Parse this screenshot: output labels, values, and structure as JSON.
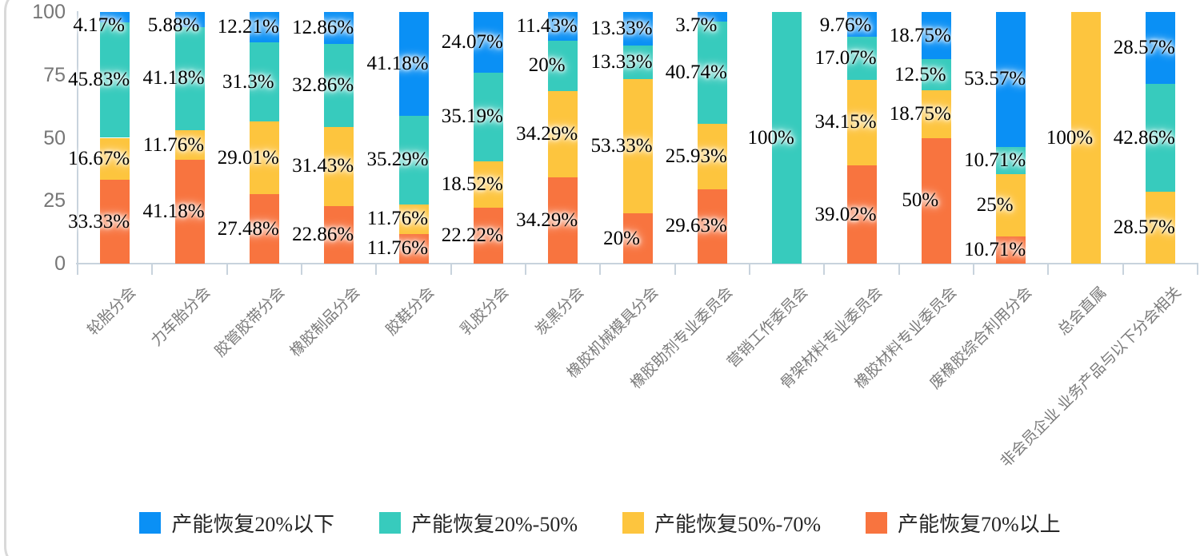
{
  "chart_data": {
    "type": "bar",
    "variant": "stacked-percent-column",
    "title": "",
    "xlabel": "",
    "ylabel": "",
    "grid": false,
    "legend_position": "bottom",
    "y_axis": {
      "min": 0,
      "max": 100,
      "ticks": [
        0,
        25,
        50,
        75,
        100
      ]
    },
    "categories": [
      "轮胎分会",
      "力车胎分会",
      "胶管胶带分会",
      "橡胶制品分会",
      "胶鞋分会",
      "乳胶分会",
      "炭黑分会",
      "橡胶机械模具分会",
      "橡胶助剂专业委员会",
      "营销工作委员会",
      "骨架材料专业委员会",
      "橡胶材料专业委员会",
      "废橡胶综合利用分会",
      "总会直属",
      "非会员企业 业务产品与以下分会相关"
    ],
    "stack_order_bottom_to_top": [
      "产能恢复70%以上",
      "产能恢复50%-70%",
      "产能恢复20%-50%",
      "产能恢复20%以下"
    ],
    "series": [
      {
        "name": "产能恢复20%以下",
        "color": "#0a90f5",
        "values": [
          4.17,
          5.88,
          12.21,
          12.86,
          41.18,
          24.07,
          11.43,
          13.33,
          3.7,
          0,
          9.76,
          18.75,
          53.57,
          0,
          28.57
        ]
      },
      {
        "name": "产能恢复20%-50%",
        "color": "#37cbbd",
        "values": [
          45.83,
          41.18,
          31.3,
          32.86,
          35.29,
          35.19,
          20,
          13.33,
          40.74,
          100,
          17.07,
          12.5,
          10.71,
          0,
          42.86
        ]
      },
      {
        "name": "产能恢复50%-70%",
        "color": "#fdc53e",
        "values": [
          16.67,
          11.76,
          29.01,
          31.43,
          11.76,
          18.52,
          34.29,
          53.33,
          25.93,
          0,
          34.15,
          18.75,
          25,
          100,
          28.57
        ]
      },
      {
        "name": "产能恢复70%以上",
        "color": "#f8743f",
        "values": [
          33.33,
          41.18,
          27.48,
          22.86,
          11.76,
          22.22,
          34.29,
          20,
          29.63,
          0,
          39.02,
          50,
          10.71,
          0,
          0
        ]
      }
    ],
    "label_suffix": "%",
    "colors": {
      "axis": "#c8d3dd",
      "axis_text": "#767676",
      "category_text": "#7b7b7b",
      "card_border": "#d9d9d9",
      "data_label": "#000000"
    }
  }
}
